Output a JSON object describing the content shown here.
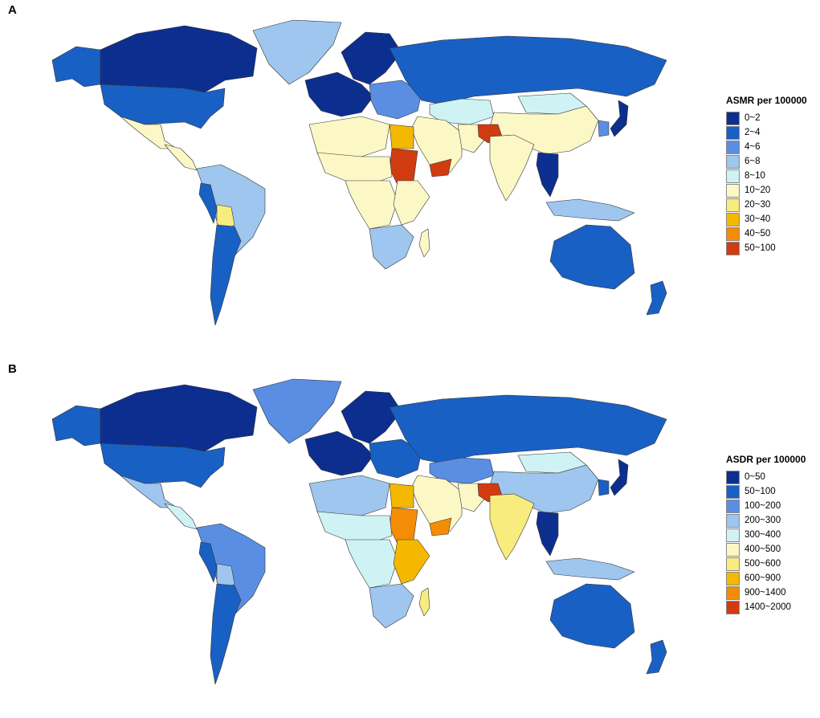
{
  "panels": [
    {
      "label": "A",
      "legend_title": "ASMR per 100000",
      "bins": [
        "0~2",
        "2~4",
        "4~6",
        "6~8",
        "8~10",
        "10~20",
        "20~30",
        "30~40",
        "40~50",
        "50~100"
      ],
      "regions": {
        "canada": 0,
        "alaska": 1,
        "usa": 1,
        "greenland": 3,
        "mexico": 5,
        "central_america": 5,
        "south_america": 3,
        "peru": 1,
        "bolivia": 6,
        "chile_argentina": 1,
        "scandinavia": 0,
        "western_europe": 0,
        "eastern_europe": 2,
        "russia": 1,
        "kazakhstan": 4,
        "china": 5,
        "mongolia": 4,
        "japan": 0,
        "korea": 2,
        "middle_east": 5,
        "afghanistan": 9,
        "iran": 5,
        "india": 5,
        "se_asia": 0,
        "indonesia": 3,
        "australia": 1,
        "new_zealand": 1,
        "north_africa": 5,
        "egypt": 7,
        "sudan": 9,
        "yemen": 9,
        "sahel": 5,
        "central_africa": 5,
        "east_africa": 5,
        "southern_africa": 3,
        "madagascar": 5
      }
    },
    {
      "label": "B",
      "legend_title": "ASDR per 100000",
      "bins": [
        "0~50",
        "50~100",
        "100~200",
        "200~300",
        "300~400",
        "400~500",
        "500~600",
        "600~900",
        "900~1400",
        "1400~2000"
      ],
      "regions": {
        "canada": 0,
        "alaska": 1,
        "usa": 1,
        "greenland": 2,
        "mexico": 3,
        "central_america": 4,
        "south_america": 2,
        "peru": 1,
        "bolivia": 3,
        "chile_argentina": 1,
        "scandinavia": 0,
        "western_europe": 0,
        "eastern_europe": 1,
        "russia": 1,
        "kazakhstan": 2,
        "china": 3,
        "mongolia": 4,
        "japan": 0,
        "korea": 1,
        "middle_east": 5,
        "afghanistan": 9,
        "iran": 5,
        "india": 6,
        "se_asia": 0,
        "indonesia": 3,
        "australia": 1,
        "new_zealand": 1,
        "north_africa": 3,
        "egypt": 7,
        "sudan": 8,
        "yemen": 8,
        "sahel": 4,
        "central_africa": 4,
        "east_africa": 7,
        "southern_africa": 3,
        "madagascar": 6
      }
    }
  ],
  "palette": [
    "#0c2f8f",
    "#1960c4",
    "#5a8ee2",
    "#9ec6ee",
    "#cff2f5",
    "#fbf8c6",
    "#f8ec7e",
    "#f5b800",
    "#f48c06",
    "#d13b10"
  ]
}
